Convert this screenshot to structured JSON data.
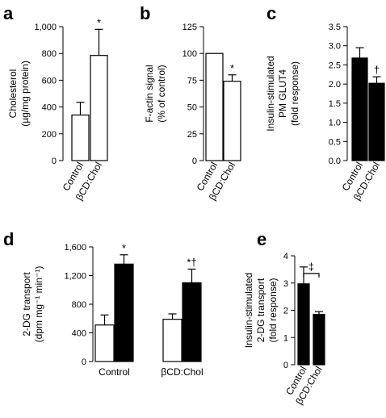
{
  "chart_data": [
    {
      "panel": "a",
      "type": "bar",
      "ylabel": [
        "Cholesterol",
        "(µg/mg protein)"
      ],
      "ylim": [
        0,
        1000
      ],
      "yticks": [
        "0",
        "200",
        "400",
        "600",
        "800",
        "1,000"
      ],
      "categories": [
        "Control",
        "βCD:Chol"
      ],
      "values": [
        340,
        785
      ],
      "errors": [
        95,
        195
      ],
      "fills": [
        "#ffffff",
        "#ffffff"
      ],
      "annotations": [
        "",
        "*"
      ]
    },
    {
      "panel": "b",
      "type": "bar",
      "ylabel": [
        "F-actin signal",
        "(% of control)"
      ],
      "ylim": [
        0,
        125
      ],
      "yticks": [
        "0",
        "25",
        "50",
        "75",
        "100",
        "125"
      ],
      "categories": [
        "Control",
        "βCD:Chol"
      ],
      "values": [
        100,
        74
      ],
      "errors": [
        0,
        6
      ],
      "fills": [
        "#ffffff",
        "#ffffff"
      ],
      "annotations": [
        "",
        "*"
      ]
    },
    {
      "panel": "c",
      "type": "bar",
      "ylabel": [
        "Insulin-stimulated",
        "PM GLUT4",
        "(fold response)"
      ],
      "ylim": [
        0,
        3.5
      ],
      "yticks": [
        "0.0",
        "0.5",
        "1.0",
        "1.5",
        "2.0",
        "2.5",
        "3.0",
        "3.5"
      ],
      "categories": [
        "Control",
        "βCD:Chol"
      ],
      "values": [
        2.68,
        2.02
      ],
      "errors": [
        0.27,
        0.17
      ],
      "fills": [
        "#000000",
        "#000000"
      ],
      "annotations": [
        "",
        "†"
      ]
    },
    {
      "panel": "d",
      "type": "bar",
      "ylabel": [
        "2-DG transport",
        "(dpm mg⁻¹ min⁻¹)"
      ],
      "ylim": [
        0,
        1600
      ],
      "yticks": [
        "0",
        "400",
        "800",
        "1,200",
        "1,600"
      ],
      "categories": [
        "Control",
        "βCD:Chol"
      ],
      "series": [
        {
          "values": [
            510,
            590
          ],
          "errors": [
            140,
            75
          ],
          "fill": "#ffffff"
        },
        {
          "values": [
            1360,
            1100
          ],
          "errors": [
            130,
            190
          ],
          "fill": "#000000"
        }
      ],
      "annotations": [
        [
          "",
          "*"
        ],
        [
          "",
          "*†"
        ]
      ]
    },
    {
      "panel": "e",
      "type": "bar",
      "ylabel": [
        "Insulin-stimulated",
        "2-DG transport",
        "(fold response)"
      ],
      "ylim": [
        0,
        4
      ],
      "yticks": [
        "0",
        "1",
        "2",
        "3",
        "4"
      ],
      "categories": [
        "Control",
        "βCD:Chol"
      ],
      "values": [
        2.97,
        1.85
      ],
      "errors": [
        0.62,
        0.1
      ],
      "fills": [
        "#000000",
        "#000000"
      ],
      "bracket": "‡"
    }
  ]
}
